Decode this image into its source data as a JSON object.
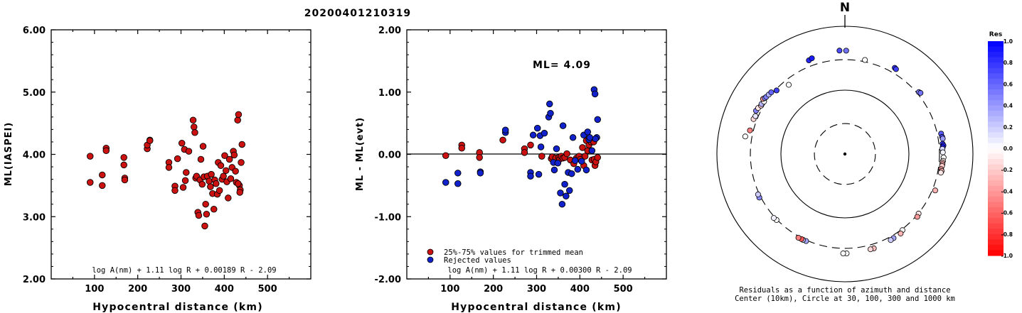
{
  "title": "20200401210319",
  "colors": {
    "red_point": "#cc1111",
    "blue_point": "#1122cc",
    "axis": "#000000"
  },
  "chart_data": [
    {
      "type": "scatter",
      "ylabel": "ML(IASPEI)",
      "xlabel": "Hypocentral distance (km)",
      "xlim": [
        0,
        600
      ],
      "ylim": [
        2.0,
        6.0
      ],
      "xticks": [
        "100",
        "200",
        "300",
        "400",
        "500"
      ],
      "yticks": [
        "2.00",
        "3.00",
        "4.00",
        "5.00",
        "6.00"
      ],
      "formula": "log A(nm) + 1.11 log R + 0.00189 R - 2.09",
      "series": [
        {
          "color": "#cc1111",
          "points": [
            [
              90,
              3.97
            ],
            [
              90,
              3.55
            ],
            [
              118,
              3.67
            ],
            [
              118,
              3.5
            ],
            [
              127,
              4.1
            ],
            [
              127,
              4.06
            ],
            [
              168,
              3.95
            ],
            [
              168,
              3.83
            ],
            [
              170,
              3.62
            ],
            [
              170,
              3.59
            ],
            [
              222,
              4.09
            ],
            [
              222,
              4.15
            ],
            [
              228,
              4.23
            ],
            [
              228,
              4.22
            ],
            [
              272,
              3.87
            ],
            [
              272,
              3.79
            ],
            [
              286,
              3.49
            ],
            [
              286,
              3.42
            ],
            [
              292,
              3.93
            ],
            [
              302,
              4.18
            ],
            [
              305,
              3.47
            ],
            [
              308,
              4.08
            ],
            [
              310,
              3.58
            ],
            [
              312,
              3.71
            ],
            [
              318,
              4.05
            ],
            [
              328,
              4.55
            ],
            [
              330,
              4.44
            ],
            [
              332,
              4.35
            ],
            [
              334,
              3.62
            ],
            [
              336,
              3.65
            ],
            [
              339,
              3.07
            ],
            [
              341,
              3.02
            ],
            [
              344,
              3.59
            ],
            [
              346,
              3.92
            ],
            [
              349,
              3.52
            ],
            [
              351,
              4.13
            ],
            [
              353,
              3.64
            ],
            [
              355,
              2.85
            ],
            [
              357,
              3.2
            ],
            [
              359,
              3.04
            ],
            [
              361,
              3.65
            ],
            [
              365,
              3.57
            ],
            [
              368,
              3.48
            ],
            [
              370,
              3.68
            ],
            [
              373,
              3.37
            ],
            [
              376,
              3.12
            ],
            [
              378,
              3.59
            ],
            [
              381,
              3.53
            ],
            [
              384,
              3.36
            ],
            [
              386,
              3.87
            ],
            [
              389,
              3.42
            ],
            [
              392,
              3.82
            ],
            [
              395,
              3.6
            ],
            [
              398,
              3.65
            ],
            [
              401,
              3.98
            ],
            [
              404,
              3.74
            ],
            [
              406,
              3.56
            ],
            [
              409,
              3.3
            ],
            [
              412,
              3.92
            ],
            [
              415,
              3.61
            ],
            [
              418,
              3.79
            ],
            [
              421,
              4.05
            ],
            [
              423,
              3.99
            ],
            [
              426,
              3.73
            ],
            [
              428,
              3.55
            ],
            [
              431,
              4.55
            ],
            [
              433,
              4.64
            ],
            [
              435,
              3.5
            ],
            [
              437,
              3.43
            ],
            [
              439,
              3.87
            ],
            [
              441,
              4.16
            ],
            [
              432,
              3.53
            ],
            [
              436,
              3.39
            ]
          ]
        }
      ]
    },
    {
      "type": "scatter",
      "ylabel": "ML - ML(evt)",
      "xlabel": "Hypocentral distance (km)",
      "xlim": [
        0,
        600
      ],
      "ylim": [
        -2.0,
        2.0
      ],
      "xticks": [
        "100",
        "200",
        "300",
        "400",
        "500"
      ],
      "yticks": [
        "-2.00",
        "-1.00",
        "0.00",
        "1.00",
        "2.00"
      ],
      "annotation": "ML= 4.09",
      "formula": "log A(nm) + 1.11 log R + 0.00300 R - 2.09",
      "series": [
        {
          "name": "25%-75% values for trimmed mean",
          "color": "#cc1111",
          "points": [
            [
              90,
              -0.02
            ],
            [
              127,
              0.15
            ],
            [
              127,
              0.1
            ],
            [
              168,
              0.03
            ],
            [
              168,
              -0.05
            ],
            [
              222,
              0.23
            ],
            [
              272,
              0.09
            ],
            [
              272,
              0.03
            ],
            [
              286,
              0.15
            ],
            [
              312,
              -0.03
            ],
            [
              334,
              -0.07
            ],
            [
              336,
              -0.04
            ],
            [
              344,
              -0.06
            ],
            [
              351,
              -0.05
            ],
            [
              353,
              -0.08
            ],
            [
              357,
              -0.03
            ],
            [
              361,
              -0.06
            ],
            [
              365,
              -0.05
            ],
            [
              370,
              0.01
            ],
            [
              378,
              -0.09
            ],
            [
              386,
              -0.15
            ],
            [
              392,
              -0.06
            ],
            [
              398,
              -0.03
            ],
            [
              401,
              -0.08
            ],
            [
              406,
              0.11
            ],
            [
              409,
              -0.18
            ],
            [
              412,
              -0.03
            ],
            [
              415,
              0.22
            ],
            [
              418,
              0.06
            ],
            [
              421,
              0.15
            ],
            [
              426,
              0.2
            ],
            [
              428,
              -0.09
            ],
            [
              431,
              0.23
            ],
            [
              433,
              -0.08
            ],
            [
              435,
              -0.18
            ],
            [
              437,
              -0.12
            ],
            [
              441,
              -0.05
            ],
            [
              432,
              0.2
            ]
          ]
        },
        {
          "name": "Rejected values",
          "color": "#1122cc",
          "points": [
            [
              90,
              -0.45
            ],
            [
              118,
              -0.47
            ],
            [
              118,
              -0.3
            ],
            [
              170,
              -0.28
            ],
            [
              170,
              -0.3
            ],
            [
              228,
              0.35
            ],
            [
              228,
              0.39
            ],
            [
              286,
              -0.29
            ],
            [
              286,
              -0.35
            ],
            [
              292,
              0.31
            ],
            [
              302,
              0.42
            ],
            [
              305,
              -0.32
            ],
            [
              308,
              0.3
            ],
            [
              310,
              0.12
            ],
            [
              318,
              0.34
            ],
            [
              328,
              0.6
            ],
            [
              330,
              0.81
            ],
            [
              332,
              0.66
            ],
            [
              339,
              -0.13
            ],
            [
              341,
              -0.25
            ],
            [
              346,
              0.09
            ],
            [
              349,
              -0.14
            ],
            [
              355,
              -0.62
            ],
            [
              359,
              -0.8
            ],
            [
              361,
              0.46
            ],
            [
              365,
              -0.48
            ],
            [
              368,
              -0.67
            ],
            [
              373,
              -0.29
            ],
            [
              376,
              -0.58
            ],
            [
              381,
              -0.31
            ],
            [
              384,
              0.27
            ],
            [
              389,
              -0.1
            ],
            [
              395,
              -0.24
            ],
            [
              404,
              -0.11
            ],
            [
              409,
              0.31
            ],
            [
              415,
              -0.25
            ],
            [
              418,
              0.36
            ],
            [
              421,
              0.24
            ],
            [
              423,
              0.27
            ],
            [
              428,
              0.06
            ],
            [
              433,
              1.04
            ],
            [
              435,
              0.97
            ],
            [
              439,
              0.27
            ],
            [
              441,
              0.56
            ],
            [
              436,
              0.25
            ]
          ]
        }
      ]
    },
    {
      "type": "polar-scatter",
      "north_label": "N",
      "caption_line1": "Residuals as a function of azimuth and distance",
      "caption_line2": "Center (10km), Circle at 30, 100, 300 and 1000 km",
      "rings_km": [
        30,
        100,
        300,
        1000
      ],
      "colorbar": {
        "title": "Res",
        "ticks": [
          "1.0",
          "0.8",
          "0.6",
          "0.4",
          "0.2",
          "0.0",
          "-0.2",
          "-0.4",
          "-0.6",
          "-0.8",
          "-1.0"
        ]
      },
      "stations": [
        {
          "az": 0.7,
          "dist": 415,
          "res": 0.55
        },
        {
          "az": 357,
          "dist": 418,
          "res": 0.7
        },
        {
          "az": 339,
          "dist": 372,
          "res": 0.85
        },
        {
          "az": 341,
          "dist": 385,
          "res": 0.9
        },
        {
          "az": 30,
          "dist": 361,
          "res": 0.8
        },
        {
          "az": 31,
          "dist": 355,
          "res": 0.75
        },
        {
          "az": 12,
          "dist": 320,
          "res": 0.0
        },
        {
          "az": 50,
          "dist": 322,
          "res": 0.5
        },
        {
          "az": 51,
          "dist": 331,
          "res": 0.55
        },
        {
          "az": 78,
          "dist": 344,
          "res": 0.65
        },
        {
          "az": 80,
          "dist": 349,
          "res": 0.7
        },
        {
          "az": 81,
          "dist": 353,
          "res": 0.4
        },
        {
          "az": 84,
          "dist": 342,
          "res": 0.8
        },
        {
          "az": 85,
          "dist": 351,
          "res": 0.85
        },
        {
          "az": 86,
          "dist": 341,
          "res": 0.9
        },
        {
          "az": 87,
          "dist": 335,
          "res": 0.15
        },
        {
          "az": 89,
          "dist": 339,
          "res": 0.05
        },
        {
          "az": 92,
          "dist": 349,
          "res": 0.0
        },
        {
          "az": 94,
          "dist": 344,
          "res": -0.1
        },
        {
          "az": 95,
          "dist": 339,
          "res": -0.25
        },
        {
          "az": 96,
          "dist": 340,
          "res": -0.35
        },
        {
          "az": 97,
          "dist": 338,
          "res": -0.2
        },
        {
          "az": 99,
          "dist": 333,
          "res": -0.4
        },
        {
          "az": 100,
          "dist": 342,
          "res": -0.3
        },
        {
          "az": 101,
          "dist": 336,
          "res": -0.1
        },
        {
          "az": 112,
          "dist": 332,
          "res": -0.3
        },
        {
          "az": 129,
          "dist": 303,
          "res": -0.1
        },
        {
          "az": 131,
          "dist": 315,
          "res": -0.4
        },
        {
          "az": 143,
          "dist": 311,
          "res": 0.0
        },
        {
          "az": 145,
          "dist": 330,
          "res": -0.3
        },
        {
          "az": 150,
          "dist": 331,
          "res": 0.35
        },
        {
          "az": 152,
          "dist": 335,
          "res": 0.2
        },
        {
          "az": 163,
          "dist": 350,
          "res": -0.25
        },
        {
          "az": 165,
          "dist": 350,
          "res": -0.15
        },
        {
          "az": 179,
          "dist": 360,
          "res": 0.0
        },
        {
          "az": 181,
          "dist": 360,
          "res": 0.0
        },
        {
          "az": 204,
          "dist": 310,
          "res": 0.35
        },
        {
          "az": 206,
          "dist": 312,
          "res": 0.2
        },
        {
          "az": 207,
          "dist": 312,
          "res": -0.65
        },
        {
          "az": 209,
          "dist": 315,
          "res": -0.5
        },
        {
          "az": 226,
          "dist": 306,
          "res": 0.0
        },
        {
          "az": 228,
          "dist": 313,
          "res": 0.05
        },
        {
          "az": 243,
          "dist": 317,
          "res": 0.45
        },
        {
          "az": 245,
          "dist": 314,
          "res": 0.2
        },
        {
          "az": 280,
          "dist": 381,
          "res": 0.0
        },
        {
          "az": 284,
          "dist": 338,
          "res": -0.5
        },
        {
          "az": 291,
          "dist": 338,
          "res": -0.15
        },
        {
          "az": 293,
          "dist": 330,
          "res": 0.1
        },
        {
          "az": 296,
          "dist": 351,
          "res": 0.5
        },
        {
          "az": 298,
          "dist": 343,
          "res": -0.1
        },
        {
          "az": 300,
          "dist": 326,
          "res": -0.2
        },
        {
          "az": 301,
          "dist": 331,
          "res": 0.3
        },
        {
          "az": 303,
          "dist": 321,
          "res": 0.0
        },
        {
          "az": 304,
          "dist": 349,
          "res": -0.4
        },
        {
          "az": 305,
          "dist": 337,
          "res": 0.45
        },
        {
          "az": 306,
          "dist": 331,
          "res": 0.5
        },
        {
          "az": 308,
          "dist": 324,
          "res": 0.3
        },
        {
          "az": 310,
          "dist": 318,
          "res": 0.6
        },
        {
          "az": 313,
          "dist": 288,
          "res": 0.75
        },
        {
          "az": 321,
          "dist": 248,
          "res": 0.0
        }
      ]
    }
  ]
}
